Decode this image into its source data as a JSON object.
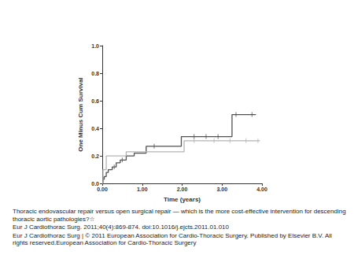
{
  "chart_data": {
    "type": "line",
    "x_label": "Time (years)",
    "y_label": "One Minus Cum Survival",
    "xlim": [
      0,
      4
    ],
    "xticks": [
      {
        "value": 0,
        "label": "0.00"
      },
      {
        "value": 1,
        "label": "1.00"
      },
      {
        "value": 2,
        "label": "2.00"
      },
      {
        "value": 3,
        "label": "3.00"
      },
      {
        "value": 4,
        "label": "4.00"
      }
    ],
    "ylim": [
      0,
      1
    ],
    "yticks": [
      {
        "value": 0,
        "label": "0.0"
      },
      {
        "value": 0.2,
        "label": "0.2"
      },
      {
        "value": 0.4,
        "label": "0.4"
      },
      {
        "value": 0.6,
        "label": "0.6"
      },
      {
        "value": 0.8,
        "label": "0.8"
      },
      {
        "value": 1,
        "label": "1.0"
      }
    ],
    "grid": false,
    "line_style": "step",
    "series": [
      {
        "color": "#505050",
        "x": [
          0,
          0.02,
          0.05,
          0.1,
          0.15,
          0.25,
          0.35,
          0.45,
          0.6,
          0.8,
          1.1,
          1.85,
          1.98,
          3.25,
          3.85
        ],
        "values": [
          0,
          0.03,
          0.05,
          0.08,
          0.1,
          0.12,
          0.15,
          0.17,
          0.2,
          0.22,
          0.27,
          0.27,
          0.34,
          0.5,
          0.5
        ],
        "censored": {
          "marker": "|",
          "x": [
            0.03,
            0.3,
            0.5,
            1.3,
            2.3,
            2.6,
            2.9,
            3.35,
            3.75
          ],
          "values": [
            0.03,
            0.12,
            0.17,
            0.27,
            0.34,
            0.34,
            0.34,
            0.5,
            0.5
          ]
        }
      },
      {
        "color": "#b4b4b4",
        "x": [
          0,
          0.02,
          0.1,
          0.6,
          1.9,
          2.05,
          3.95
        ],
        "values": [
          0,
          0.1,
          0.2,
          0.23,
          0.23,
          0.31,
          0.31
        ],
        "censored": {
          "marker": "|",
          "x": [
            2.3,
            2.8,
            3.2,
            3.6,
            3.9
          ],
          "values": [
            0.31,
            0.31,
            0.31,
            0.31,
            0.31
          ]
        }
      }
    ]
  },
  "caption": {
    "title": "Thoracic endovascular repair versus open surgical repair — which is the more cost-effective intervention for descending thoracic aortic pathologies?☆",
    "citation": "Eur J Cardiothorac Surg. 2011;40(4):869-874. doi:10.1016/j.ejcts.2011.01.010",
    "copyright": "Eur J Cardiothorac Surg | © 2011 European Association for Cardio-Thoracic Surgery. Published by Elsevier B.V. All rights reserved.European Association for Cardio-Thoracic Surgery"
  }
}
